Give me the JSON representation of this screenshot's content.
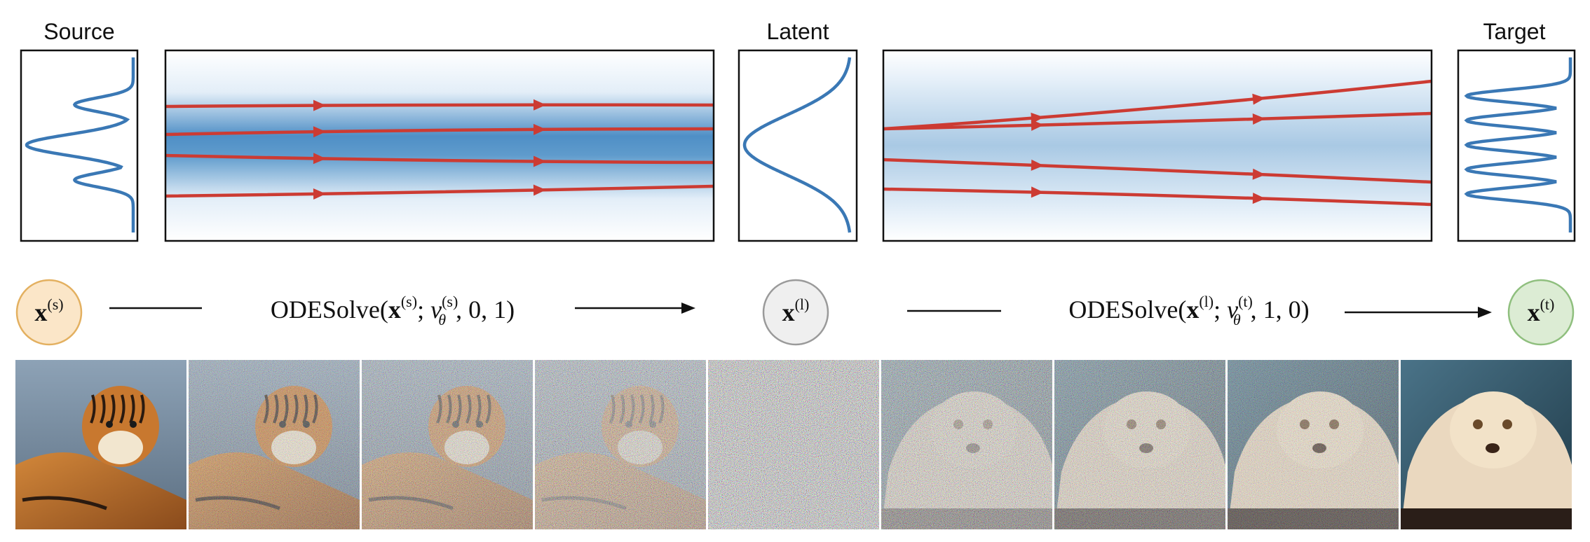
{
  "panels": {
    "source_title": "Source",
    "latent_title": "Latent",
    "target_title": "Target"
  },
  "nodes": {
    "source": {
      "symbol": "x",
      "superscript": "(s)",
      "fill": "#fbe6c8",
      "stroke": "#e3b060"
    },
    "latent": {
      "symbol": "x",
      "superscript": "(l)",
      "fill": "#efefef",
      "stroke": "#9a9a9a"
    },
    "target": {
      "symbol": "x",
      "superscript": "(t)",
      "fill": "#dcecd4",
      "stroke": "#8fbf7e"
    }
  },
  "ode_steps": {
    "forward": {
      "prefix": "ODESolve(",
      "x_sup": "(s)",
      "v_sup": "(s)",
      "v_sub": "θ",
      "suffix": ", 0, 1)"
    },
    "reverse": {
      "prefix": "ODESolve(",
      "x_sup": "(l)",
      "v_sup": "(t)",
      "v_sub": "θ",
      "suffix": ", 1, 0)"
    }
  },
  "colors": {
    "density_curve": "#3a78b5",
    "trajectory": "#cc3b33",
    "flow_field": "#4f8fc6"
  },
  "image_strip": {
    "count": 9,
    "noise_levels": [
      0,
      0.45,
      0.6,
      0.75,
      1.0,
      0.75,
      0.6,
      0.45,
      0
    ],
    "subjects": [
      "tiger",
      "tiger",
      "tiger",
      "tiger",
      "noise",
      "cat",
      "cat",
      "cat",
      "cat"
    ]
  }
}
